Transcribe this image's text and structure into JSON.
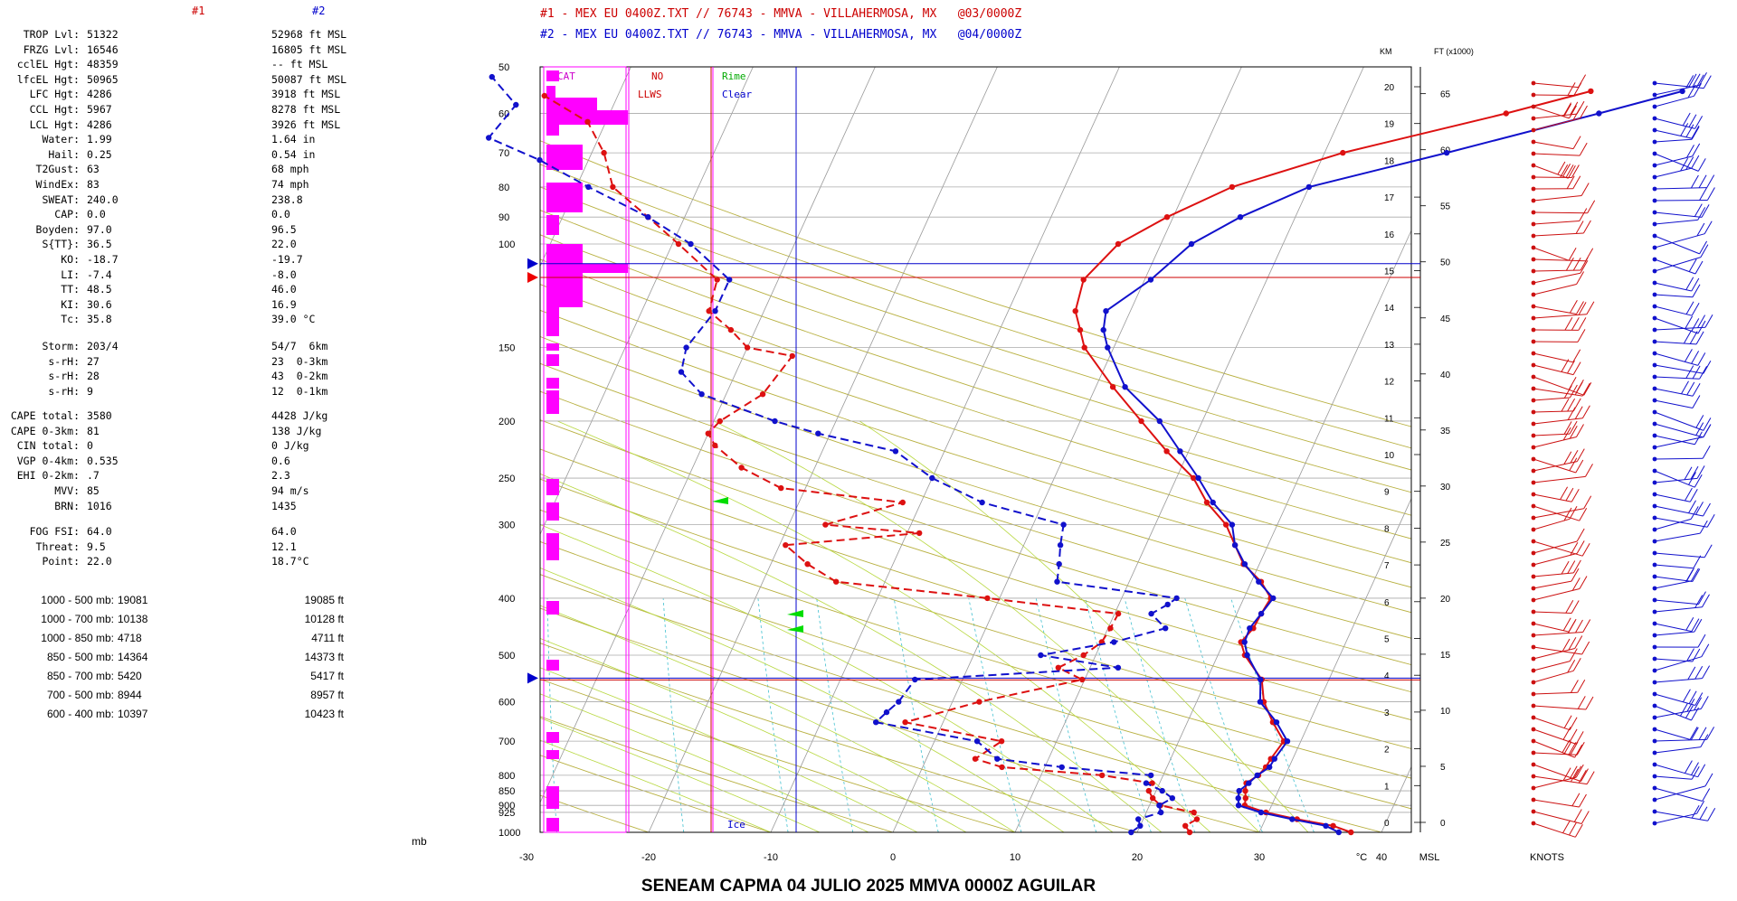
{
  "header": {
    "line1": "#1 - MEX EU 0400Z.TXT // 76743 - MMVA - VILLAHERMOSA, MX   @03/0000Z",
    "line2": "#2 - MEX EU 0400Z.TXT // 76743 - MMVA - VILLAHERMOSA, MX   @04/0000Z",
    "col1": "#1",
    "col2": "#2"
  },
  "stats": [
    {
      "label": "TROP Lvl:",
      "v1": "51322",
      "v2": "52968 ft MSL"
    },
    {
      "label": "FRZG Lvl:",
      "v1": "16546",
      "v2": "16805 ft MSL"
    },
    {
      "label": "cclEL Hgt:",
      "v1": "48359",
      "v2": "-- ft MSL"
    },
    {
      "label": "lfcEL Hgt:",
      "v1": "50965",
      "v2": "50087 ft MSL"
    },
    {
      "label": "LFC Hgt:",
      "v1": "4286",
      "v2": "3918 ft MSL"
    },
    {
      "label": "CCL Hgt:",
      "v1": "5967",
      "v2": "8278 ft MSL"
    },
    {
      "label": "LCL Hgt:",
      "v1": "4286",
      "v2": "3926 ft MSL"
    },
    {
      "label": "Water:",
      "v1": "1.99",
      "v2": "1.64 in"
    },
    {
      "label": "Hail:",
      "v1": "0.25",
      "v2": "0.54 in"
    },
    {
      "label": "T2Gust:",
      "v1": "63",
      "v2": "68 mph"
    },
    {
      "label": "WindEx:",
      "v1": "83",
      "v2": "74 mph"
    },
    {
      "label": "SWEAT:",
      "v1": "240.0",
      "v2": "238.8"
    },
    {
      "label": "CAP:",
      "v1": "0.0",
      "v2": "0.0"
    },
    {
      "label": "Boyden:",
      "v1": "97.0",
      "v2": "96.5"
    },
    {
      "label": "S{TT}:",
      "v1": "36.5",
      "v2": "22.0"
    },
    {
      "label": "KO:",
      "v1": "-18.7",
      "v2": "-19.7"
    },
    {
      "label": "LI:",
      "v1": "-7.4",
      "v2": "-8.0"
    },
    {
      "label": "TT:",
      "v1": "48.5",
      "v2": "46.0"
    },
    {
      "label": "KI:",
      "v1": "30.6",
      "v2": "16.9"
    },
    {
      "label": "Tc:",
      "v1": "35.8",
      "v2": "39.0 °C"
    }
  ],
  "storm": [
    {
      "label": "Storm:",
      "v1": "203/4",
      "v2": "54/7  6km"
    },
    {
      "label": "s-rH:",
      "v1": "27",
      "v2": "23  0-3km"
    },
    {
      "label": "s-rH:",
      "v1": "28",
      "v2": "43  0-2km"
    },
    {
      "label": "s-rH:",
      "v1": "9",
      "v2": "12  0-1km"
    }
  ],
  "cape": [
    {
      "label": "CAPE total:",
      "v1": "3580",
      "v2": "4428 J/kg"
    },
    {
      "label": "CAPE 0-3km:",
      "v1": "81",
      "v2": "138 J/kg"
    },
    {
      "label": "CIN total:",
      "v1": "0",
      "v2": "0 J/kg"
    },
    {
      "label": "VGP 0-4km:",
      "v1": "0.535",
      "v2": "0.6"
    },
    {
      "label": "EHI 0-2km:",
      "v1": ".7",
      "v2": "2.3"
    },
    {
      "label": "MVV:",
      "v1": "85",
      "v2": "94 m/s"
    },
    {
      "label": "BRN:",
      "v1": "1016",
      "v2": "1435"
    }
  ],
  "fog": [
    {
      "label": "FOG FSI:",
      "v1": "64.0",
      "v2": "64.0"
    },
    {
      "label": "Threat:",
      "v1": "9.5",
      "v2": "12.1"
    },
    {
      "label": "Point:",
      "v1": "22.0",
      "v2": "18.7°C"
    }
  ],
  "thickness": [
    {
      "label": "1000 - 500 mb:",
      "v1": "19081",
      "v2": "19085 ft"
    },
    {
      "label": "1000 - 700 mb:",
      "v1": "10138",
      "v2": "10128 ft"
    },
    {
      "label": "1000 - 850 mb:",
      "v1": "4718",
      "v2": "4711 ft"
    },
    {
      "label": "850 - 500 mb:",
      "v1": "14364",
      "v2": "14373 ft"
    },
    {
      "label": "850 - 700 mb:",
      "v1": "5420",
      "v2": "5417 ft"
    },
    {
      "label": "700 - 500 mb:",
      "v1": "8944",
      "v2": "8957 ft"
    },
    {
      "label": "600 - 400 mb:",
      "v1": "10397",
      "v2": "10423 ft"
    }
  ],
  "mb_unit": "mb",
  "footer": "SENEAM  CAPMA  04 JULIO 2025   MMVA   0000Z  AGUILAR",
  "colors": {
    "sounding1": "#dd1111",
    "sounding2": "#1111cc",
    "magenta": "#ff00ff",
    "grid": "#888888",
    "dryad": "#b8b040",
    "moistad": "#b8d840",
    "mixing": "#40c0d0"
  },
  "chart_data": {
    "type": "skew-t",
    "pressure_levels": [
      50,
      60,
      70,
      80,
      90,
      100,
      150,
      200,
      250,
      300,
      400,
      500,
      600,
      700,
      800,
      850,
      900,
      925,
      1000
    ],
    "pressure_labels": [
      "50",
      "60",
      "70",
      "80",
      "90",
      "100",
      "150",
      "200",
      "250",
      "300",
      "400",
      "500",
      "600",
      "700",
      "800",
      "850",
      "900",
      "925",
      "1000"
    ],
    "x_ticks": [
      -30,
      -20,
      -10,
      0,
      10,
      20,
      30,
      40
    ],
    "x_tick_labels": [
      "-30",
      "-20",
      "-10",
      "0",
      "10",
      "20",
      "30",
      "40"
    ],
    "x_unit": "°C",
    "msl_label": "MSL",
    "knots_label": "KNOTS",
    "km_header": "KM",
    "ft_header": "FT (x1000)",
    "km_ticks": [
      0,
      1,
      2,
      3,
      4,
      5,
      6,
      7,
      8,
      9,
      10,
      11,
      12,
      13,
      14,
      15,
      16,
      17,
      18,
      19,
      20
    ],
    "ft_ticks": [
      0,
      5,
      10,
      15,
      20,
      25,
      30,
      35,
      40,
      45,
      50,
      55,
      60,
      65
    ],
    "icing": {
      "cat": "CAT",
      "no": "NO",
      "llws": "LLWS",
      "rime": "Rime",
      "clear": "Clear",
      "ice": "Ice"
    },
    "trop_p": {
      "s1": 114,
      "s2": 108
    },
    "frzg_p": 547,
    "series": [
      {
        "name": "#1",
        "temp": [
          [
            1000,
            37.5
          ],
          [
            975,
            35.8
          ],
          [
            950,
            32.6
          ],
          [
            925,
            29.8
          ],
          [
            900,
            27.8
          ],
          [
            875,
            27.6
          ],
          [
            850,
            27.3
          ],
          [
            825,
            27.1
          ],
          [
            800,
            27.8
          ],
          [
            775,
            28.1
          ],
          [
            750,
            28.2
          ],
          [
            700,
            28.6
          ],
          [
            650,
            27.0
          ],
          [
            600,
            25.5
          ],
          [
            550,
            24.5
          ],
          [
            500,
            22.2
          ],
          [
            475,
            21.4
          ],
          [
            450,
            21.9
          ],
          [
            425,
            22.0
          ],
          [
            400,
            22.2
          ],
          [
            375,
            20.8
          ],
          [
            350,
            18.7
          ],
          [
            325,
            17.3
          ],
          [
            300,
            15.8
          ],
          [
            275,
            13.4
          ],
          [
            250,
            11.4
          ],
          [
            225,
            8.2
          ],
          [
            200,
            5.0
          ],
          [
            175,
            1.4
          ],
          [
            150,
            -2.4
          ],
          [
            140,
            -3.4
          ],
          [
            130,
            -4.5
          ],
          [
            115,
            -5.0
          ],
          [
            100,
            -3.5
          ],
          [
            90,
            -0.5
          ],
          [
            80,
            3.7
          ],
          [
            70,
            11.5
          ],
          [
            60,
            23.4
          ],
          [
            55,
            29.5
          ]
        ],
        "dew": [
          [
            1000,
            24.3
          ],
          [
            975,
            23.7
          ],
          [
            950,
            24.4
          ],
          [
            925,
            23.9
          ],
          [
            900,
            20.9
          ],
          [
            875,
            20.0
          ],
          [
            850,
            19.4
          ],
          [
            825,
            19.4
          ],
          [
            800,
            15.0
          ],
          [
            775,
            6.5
          ],
          [
            750,
            4.0
          ],
          [
            700,
            5.5
          ],
          [
            650,
            -3.1
          ],
          [
            600,
            2.2
          ],
          [
            550,
            9.8
          ],
          [
            525,
            7.4
          ],
          [
            500,
            9.0
          ],
          [
            475,
            10.0
          ],
          [
            450,
            10.2
          ],
          [
            425,
            10.3
          ],
          [
            400,
            -1.0
          ],
          [
            375,
            -14.0
          ],
          [
            350,
            -17.0
          ],
          [
            325,
            -19.5
          ],
          [
            310,
            -9.0
          ],
          [
            300,
            -17.0
          ],
          [
            275,
            -11.5
          ],
          [
            260,
            -22.0
          ],
          [
            240,
            -26.0
          ],
          [
            220,
            -29.0
          ],
          [
            210,
            -30.0
          ],
          [
            200,
            -29.5
          ],
          [
            180,
            -27.0
          ],
          [
            155,
            -26.0
          ],
          [
            150,
            -30.0
          ],
          [
            140,
            -32.0
          ],
          [
            130,
            -34.5
          ],
          [
            115,
            -35.0
          ],
          [
            100,
            -39.5
          ],
          [
            90,
            -43.0
          ],
          [
            80,
            -47.0
          ],
          [
            70,
            -49.0
          ],
          [
            62,
            -51.5
          ],
          [
            56,
            -56.0
          ]
        ]
      },
      {
        "name": "#2",
        "temp": [
          [
            1000,
            36.5
          ],
          [
            975,
            35.2
          ],
          [
            950,
            32.2
          ],
          [
            925,
            29.4
          ],
          [
            900,
            27.3
          ],
          [
            875,
            27.0
          ],
          [
            850,
            26.8
          ],
          [
            825,
            27.3
          ],
          [
            800,
            27.7
          ],
          [
            775,
            28.4
          ],
          [
            750,
            28.5
          ],
          [
            700,
            28.9
          ],
          [
            650,
            27.3
          ],
          [
            600,
            25.2
          ],
          [
            550,
            24.4
          ],
          [
            500,
            22.4
          ],
          [
            475,
            21.7
          ],
          [
            450,
            21.6
          ],
          [
            425,
            22.0
          ],
          [
            400,
            22.4
          ],
          [
            375,
            20.6
          ],
          [
            350,
            18.8
          ],
          [
            325,
            17.3
          ],
          [
            300,
            16.3
          ],
          [
            275,
            13.9
          ],
          [
            250,
            11.8
          ],
          [
            225,
            9.3
          ],
          [
            200,
            6.5
          ],
          [
            175,
            2.4
          ],
          [
            150,
            -0.5
          ],
          [
            140,
            -1.5
          ],
          [
            130,
            -2.0
          ],
          [
            115,
            0.5
          ],
          [
            100,
            2.5
          ],
          [
            90,
            5.5
          ],
          [
            80,
            10.0
          ],
          [
            70,
            20.0
          ],
          [
            60,
            31.0
          ],
          [
            55,
            37.0
          ]
        ],
        "dew": [
          [
            1000,
            19.5
          ],
          [
            975,
            20.0
          ],
          [
            950,
            19.6
          ],
          [
            925,
            21.2
          ],
          [
            900,
            20.8
          ],
          [
            875,
            21.6
          ],
          [
            850,
            20.5
          ],
          [
            825,
            18.9
          ],
          [
            800,
            19.0
          ],
          [
            775,
            11.4
          ],
          [
            750,
            5.8
          ],
          [
            700,
            3.5
          ],
          [
            650,
            -5.5
          ],
          [
            625,
            -5.0
          ],
          [
            600,
            -4.4
          ],
          [
            550,
            -3.9
          ],
          [
            525,
            12.3
          ],
          [
            500,
            5.5
          ],
          [
            475,
            11.0
          ],
          [
            450,
            14.7
          ],
          [
            425,
            13.0
          ],
          [
            410,
            14.0
          ],
          [
            400,
            14.5
          ],
          [
            375,
            4.1
          ],
          [
            350,
            3.6
          ],
          [
            325,
            3.0
          ],
          [
            300,
            2.5
          ],
          [
            275,
            -5.0
          ],
          [
            250,
            -10.0
          ],
          [
            225,
            -14.0
          ],
          [
            210,
            -21.0
          ],
          [
            200,
            -25.0
          ],
          [
            180,
            -32.0
          ],
          [
            165,
            -34.5
          ],
          [
            150,
            -35.0
          ],
          [
            130,
            -34.0
          ],
          [
            115,
            -34.0
          ],
          [
            100,
            -38.5
          ],
          [
            90,
            -43.0
          ],
          [
            80,
            -49.0
          ],
          [
            72,
            -54.0
          ],
          [
            66,
            -59.0
          ],
          [
            58,
            -58.0
          ],
          [
            52,
            -61.0
          ]
        ]
      }
    ]
  }
}
